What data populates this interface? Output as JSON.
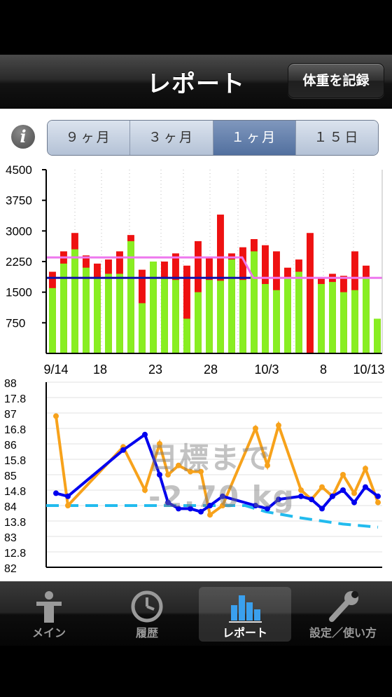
{
  "nav": {
    "title": "レポート",
    "record_button": "体重を記録"
  },
  "info_icon": "info-icon",
  "segments": [
    {
      "label": "９ヶ月",
      "selected": false
    },
    {
      "label": "３ヶ月",
      "selected": false
    },
    {
      "label": "１ヶ月",
      "selected": true
    },
    {
      "label": "１５日",
      "selected": false
    }
  ],
  "overlay": {
    "line1": "目標まで",
    "line2": "-2.70 kg"
  },
  "colors": {
    "green": "#88ee22",
    "red": "#ee1111",
    "orange": "#f7a21b",
    "blue": "#0000ee",
    "target": "#22bbee",
    "pink": "#ee77ee",
    "navy": "#1111aa"
  },
  "chart_data": [
    {
      "type": "bar",
      "ylim": [
        0,
        4500
      ],
      "yticks": [
        "4500",
        "3750",
        "3000",
        "2250",
        "1500",
        "750"
      ],
      "xticks": [
        "9/14",
        "18",
        "23",
        "28",
        "10/3",
        "8",
        "10/13"
      ],
      "series": [
        {
          "values": [
            1600,
            2200,
            2550,
            2100,
            1850,
            1950,
            1950,
            2750,
            1230,
            2250,
            1850,
            1800,
            850,
            1500,
            1800,
            1780,
            2300,
            1800,
            2500,
            1700,
            1550,
            1850,
            2000,
            0,
            1700,
            1750,
            1500,
            1550,
            1850,
            850
          ]
        },
        {
          "values": [
            2000,
            2500,
            2950,
            2400,
            2200,
            2300,
            2500,
            2900,
            2050,
            2250,
            2250,
            2450,
            2150,
            2750,
            2350,
            3400,
            2450,
            2600,
            2800,
            2650,
            2500,
            2100,
            2300,
            2950,
            1850,
            1950,
            1900,
            2500,
            2150,
            850
          ]
        }
      ],
      "reference_lines": [
        {
          "color": "pink",
          "values": [
            2350,
            1850
          ]
        },
        {
          "color": "navy",
          "value": 1850
        }
      ]
    },
    {
      "type": "line",
      "ylim": [
        82,
        88
      ],
      "yticks_right": [
        "88",
        "87",
        "86",
        "85",
        "84",
        "83",
        "82"
      ],
      "yticks_left": [
        "17.8",
        "16.8",
        "15.8",
        "14.8",
        "13.8",
        "12.8"
      ],
      "series": [
        {
          "name": "orange",
          "values": [
            86.9,
            84.0,
            null,
            null,
            null,
            85.9,
            84.5,
            86.0,
            85.0,
            85.3,
            85.1,
            85.1,
            83.7,
            84.0,
            86.5,
            85.3,
            86.6,
            null,
            84.5,
            84.2,
            84.6,
            84.3,
            85.0,
            84.4,
            85.2,
            84.1
          ]
        },
        {
          "name": "blue",
          "values": [
            84.4,
            84.3,
            null,
            null,
            null,
            85.8,
            86.3,
            85.0,
            84.1,
            83.9,
            83.9,
            83.8,
            84.0,
            84.3,
            84.0,
            83.9,
            84.2,
            84.4,
            84.3,
            84.2,
            83.9,
            84.3,
            84.5,
            84.1,
            84.6,
            84.3
          ]
        },
        {
          "name": "target",
          "values": [
            84.0,
            84.0,
            84.0,
            84.0,
            84.0,
            84.0,
            84.0,
            83.8,
            83.6,
            83.4,
            83.3
          ]
        }
      ]
    }
  ],
  "tabs": [
    {
      "label": "メイン",
      "icon": "person-icon",
      "active": false
    },
    {
      "label": "履歴",
      "icon": "clock-icon",
      "active": false
    },
    {
      "label": "レポート",
      "icon": "bar-chart-icon",
      "active": true
    },
    {
      "label": "設定／使い方",
      "icon": "wrench-icon",
      "active": false
    }
  ]
}
